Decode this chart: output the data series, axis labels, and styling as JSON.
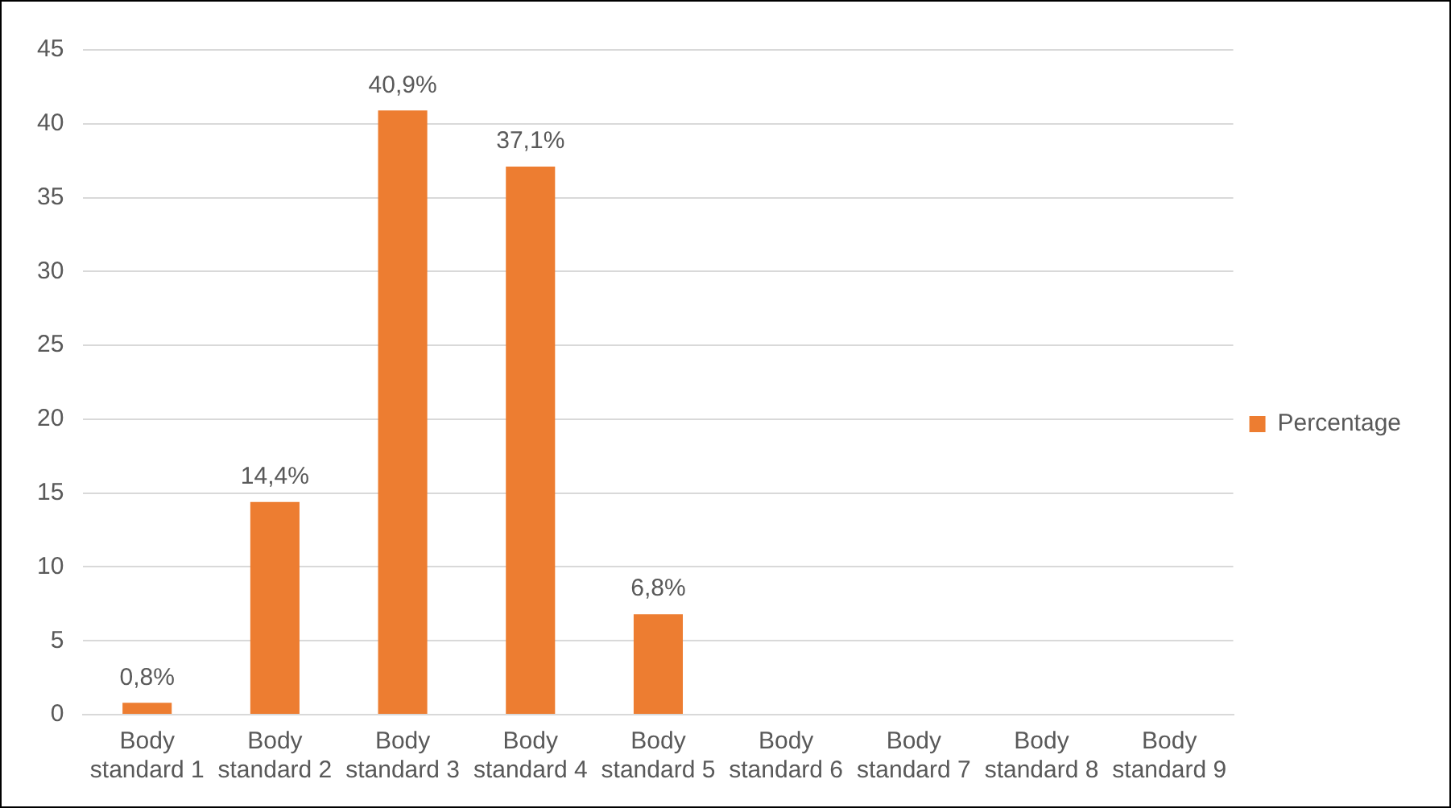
{
  "chart_data": {
    "type": "bar",
    "categories": [
      "Body standard 1",
      "Body standard 2",
      "Body standard 3",
      "Body standard 4",
      "Body standard 5",
      "Body standard 6",
      "Body standard 7",
      "Body standard 8",
      "Body standard 9"
    ],
    "series": [
      {
        "name": "Percentage",
        "color": "#ed7d31",
        "values": [
          0.8,
          14.4,
          40.9,
          37.1,
          6.8,
          0,
          0,
          0,
          0
        ],
        "value_labels": [
          "0,8%",
          "14,4%",
          "40,9%",
          "37,1%",
          "6,8%",
          null,
          null,
          null,
          null
        ]
      }
    ],
    "ylim": [
      0,
      45
    ],
    "yticks": [
      0,
      5,
      10,
      15,
      20,
      25,
      30,
      35,
      40,
      45
    ],
    "grid": "y",
    "legend": "right"
  }
}
